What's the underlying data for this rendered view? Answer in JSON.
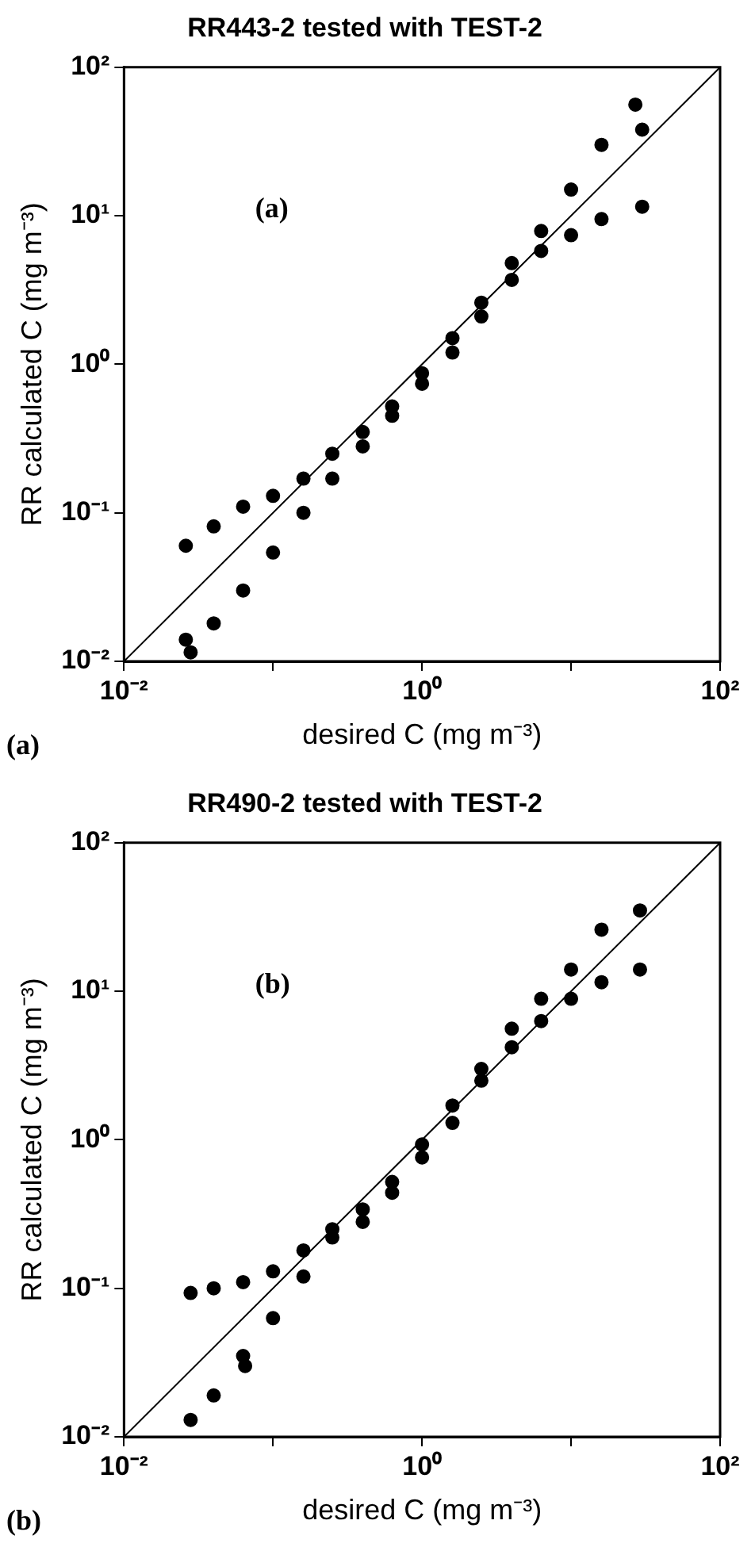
{
  "chart_data": [
    {
      "type": "scatter",
      "title": "RR443-2 tested with TEST-2",
      "xlabel": "desired C (mg m⁻³)",
      "ylabel": "RR calculated C (mg m⁻³)",
      "log": "xy",
      "grid": false,
      "marker": "circle",
      "xlim": [
        0.01,
        100
      ],
      "ylim": [
        0.01,
        100
      ],
      "xticks": [
        {
          "value": 0.01,
          "label": "10⁻²"
        },
        {
          "value": 0.1,
          "label": null
        },
        {
          "value": 1,
          "label": "10⁰"
        },
        {
          "value": 10,
          "label": null
        },
        {
          "value": 100,
          "label": "10²"
        }
      ],
      "yticks": [
        {
          "value": 0.01,
          "label": "10⁻²"
        },
        {
          "value": 0.1,
          "label": "10⁻¹"
        },
        {
          "value": 1,
          "label": "10⁰"
        },
        {
          "value": 10,
          "label": "10¹"
        },
        {
          "value": 100,
          "label": "10²"
        }
      ],
      "annotations": [
        "(a)",
        "(a)"
      ],
      "series": [
        {
          "type": "scatter",
          "color": "#000000",
          "x": [
            0.026,
            0.04,
            0.063,
            0.1,
            0.16,
            0.25,
            0.4,
            0.63,
            1.0,
            1.6,
            2.5,
            4.0,
            6.3,
            10,
            16,
            30,
            0.026,
            0.04,
            0.063,
            0.1,
            0.16,
            0.25,
            0.4,
            0.63,
            1.0,
            1.6,
            2.5,
            4.0,
            6.3,
            10,
            16,
            30,
            27,
            0.028
          ],
          "values": [
            0.06,
            0.081,
            0.11,
            0.13,
            0.17,
            0.25,
            0.35,
            0.52,
            0.87,
            1.5,
            2.6,
            4.8,
            7.9,
            15,
            30,
            38,
            0.014,
            0.018,
            0.03,
            0.054,
            0.1,
            0.17,
            0.28,
            0.45,
            0.74,
            1.2,
            2.1,
            3.7,
            5.8,
            7.4,
            9.5,
            11.5,
            56,
            0.0115
          ]
        },
        {
          "type": "line",
          "color": "#000000",
          "marker": "none",
          "x": [
            0.01,
            100
          ],
          "values": [
            0.01,
            100
          ]
        }
      ]
    },
    {
      "type": "scatter",
      "title": "RR490-2 tested with TEST-2",
      "xlabel": "desired C (mg m⁻³)",
      "ylabel": "RR calculated C (mg m⁻³)",
      "log": "xy",
      "grid": false,
      "marker": "circle",
      "xlim": [
        0.01,
        100
      ],
      "ylim": [
        0.01,
        100
      ],
      "xticks": [
        {
          "value": 0.01,
          "label": "10⁻²"
        },
        {
          "value": 0.1,
          "label": null
        },
        {
          "value": 1,
          "label": "10⁰"
        },
        {
          "value": 10,
          "label": null
        },
        {
          "value": 100,
          "label": "10²"
        }
      ],
      "yticks": [
        {
          "value": 0.01,
          "label": "10⁻²"
        },
        {
          "value": 0.1,
          "label": "10⁻¹"
        },
        {
          "value": 1,
          "label": "10⁰"
        },
        {
          "value": 10,
          "label": "10¹"
        },
        {
          "value": 100,
          "label": "10²"
        }
      ],
      "annotations": [
        "(b)",
        "(b)"
      ],
      "series": [
        {
          "type": "scatter",
          "color": "#000000",
          "x": [
            0.028,
            0.04,
            0.063,
            0.1,
            0.16,
            0.25,
            0.4,
            0.63,
            1.0,
            1.6,
            2.5,
            4.0,
            6.3,
            10,
            16,
            29,
            0.028,
            0.04,
            0.063,
            0.1,
            0.16,
            0.25,
            0.4,
            0.63,
            1.0,
            1.6,
            2.5,
            4.0,
            6.3,
            10,
            16,
            29,
            0.065
          ],
          "values": [
            0.093,
            0.1,
            0.11,
            0.13,
            0.18,
            0.25,
            0.34,
            0.52,
            0.93,
            1.7,
            3.0,
            5.6,
            8.9,
            14,
            26,
            35,
            0.013,
            0.019,
            0.035,
            0.063,
            0.12,
            0.22,
            0.28,
            0.44,
            0.76,
            1.3,
            2.5,
            4.2,
            6.3,
            8.9,
            11.5,
            14,
            0.03
          ]
        },
        {
          "type": "line",
          "color": "#000000",
          "marker": "none",
          "x": [
            0.01,
            100
          ],
          "values": [
            0.01,
            100
          ]
        }
      ]
    }
  ]
}
